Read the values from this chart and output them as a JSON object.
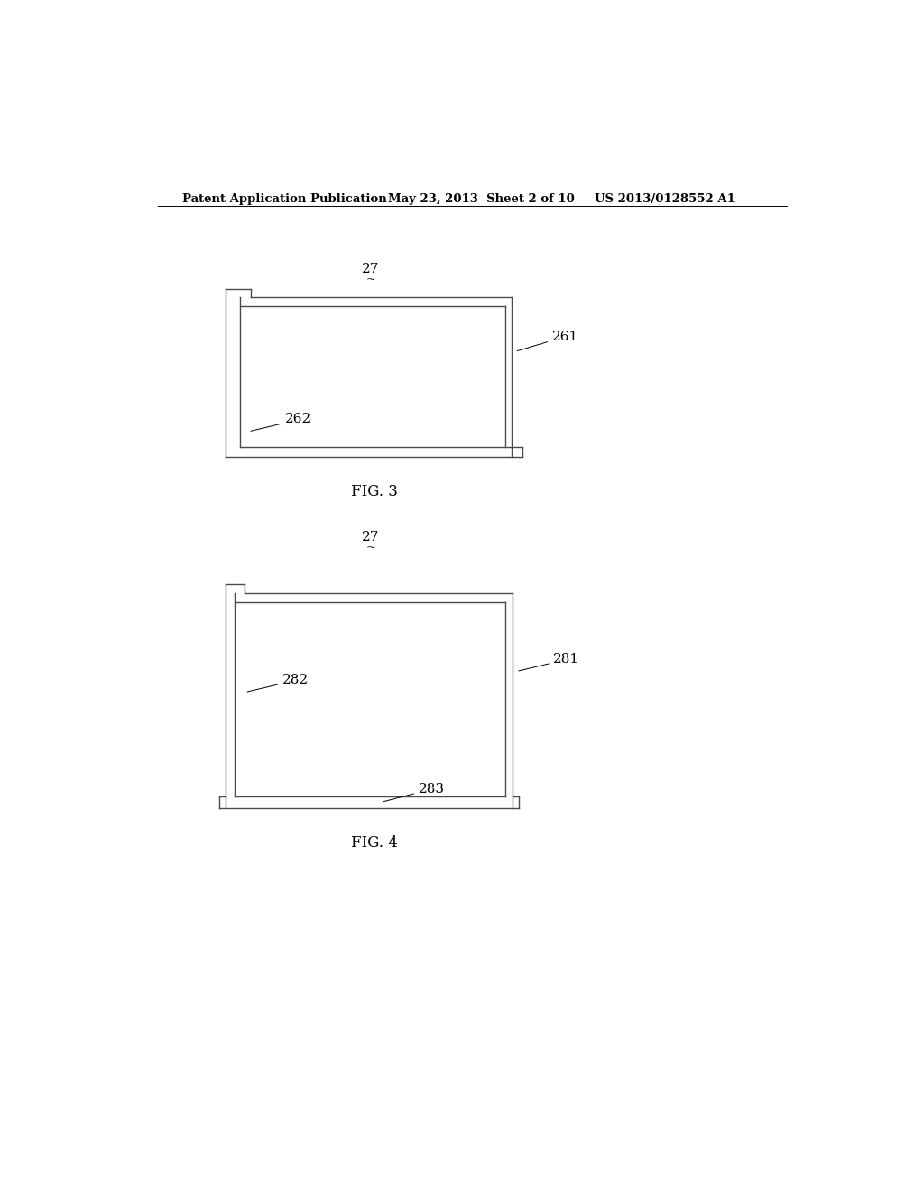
{
  "bg_color": "#ffffff",
  "header_left": "Patent Application Publication",
  "header_mid": "May 23, 2013  Sheet 2 of 10",
  "header_right": "US 2013/0128552 A1",
  "fig3_label": "FIG. 3",
  "fig4_label": "FIG. 4",
  "ref_27_1": "27",
  "ref_27_2": "27",
  "ref_261": "261",
  "ref_262": "262",
  "ref_281": "281",
  "ref_282": "282",
  "ref_283": "283",
  "line_color": "#4a4a4a",
  "line_width": 1.0,
  "header_fontsize": 9.5,
  "label_fontsize": 11,
  "caption_fontsize": 12,
  "ref_fontsize": 11
}
